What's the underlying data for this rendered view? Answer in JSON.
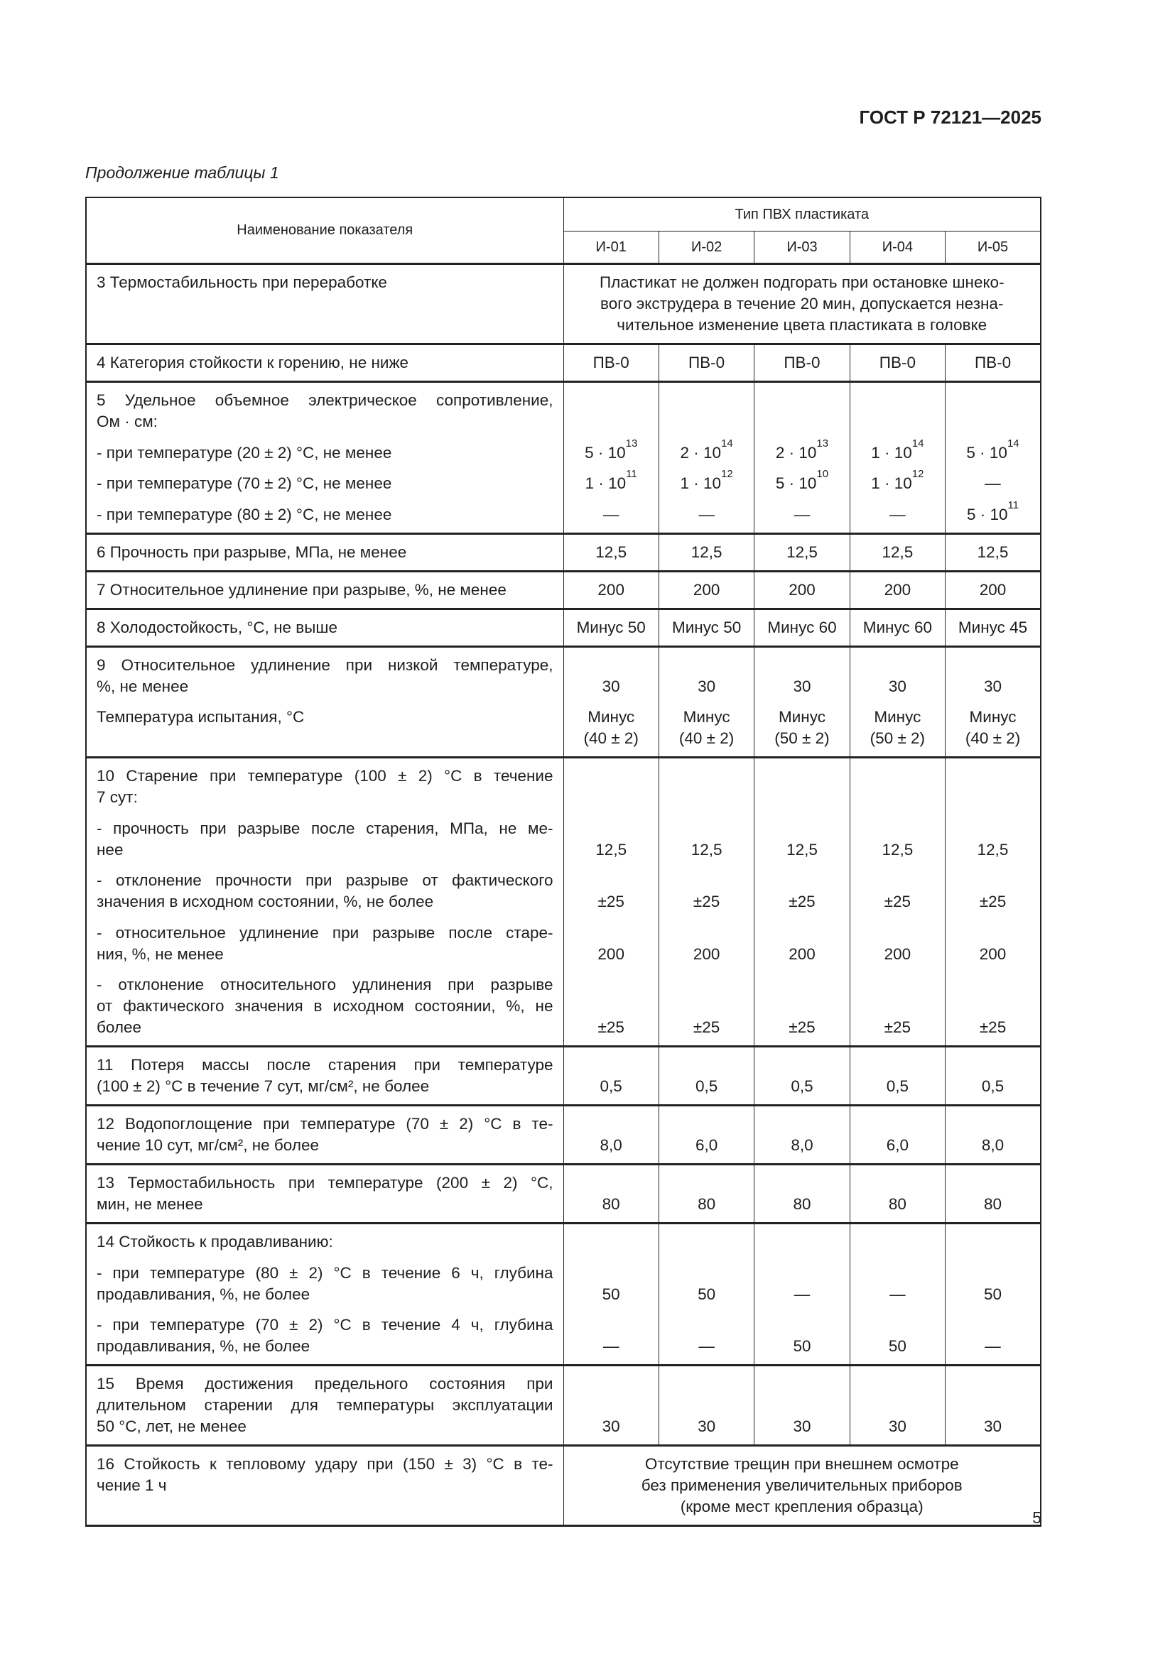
{
  "header": {
    "doc_code": "ГОСТ Р 72121—2025",
    "continuation": "Продолжение таблицы 1",
    "page_number": "5"
  },
  "table": {
    "col_header_name": "Наименование показателя",
    "col_group_header": "Тип ПВХ пластиката",
    "types": [
      "И-01",
      "И-02",
      "И-03",
      "И-04",
      "И-05"
    ],
    "rows": [
      {
        "items": [
          [
            "3  Термостабильность при переработке"
          ]
        ],
        "span": [
          "Пластикат не должен подгорать при остановке шнеко-",
          "вого экструдера в течение 20 мин, допускается незна-",
          "чительное изменение цвета пластиката в головке"
        ]
      },
      {
        "items": [
          [
            "4  Категория стойкости к горению, не ниже"
          ]
        ],
        "values": [
          [
            [
              "ПВ-0"
            ]
          ],
          [
            [
              "ПВ-0"
            ]
          ],
          [
            [
              "ПВ-0"
            ]
          ],
          [
            [
              "ПВ-0"
            ]
          ],
          [
            [
              "ПВ-0"
            ]
          ]
        ]
      },
      {
        "items": [
          [
            "5 Удельное объемное электрическое сопротивление,",
            "Ом · см:"
          ],
          [
            "- при температуре (20 ± 2) °С, не менее"
          ],
          [
            "- при температуре (70 ± 2) °С, не менее"
          ],
          [
            "- при температуре (80 ± 2) °С, не менее"
          ]
        ],
        "values": [
          [
            null,
            [
              {
                "m": "5 · 10",
                "e": "13"
              }
            ],
            [
              {
                "m": "1 · 10",
                "e": "11"
              }
            ],
            [
              "—"
            ]
          ],
          [
            null,
            [
              {
                "m": "2 · 10",
                "e": "14"
              }
            ],
            [
              {
                "m": "1 · 10",
                "e": "12"
              }
            ],
            [
              "—"
            ]
          ],
          [
            null,
            [
              {
                "m": "2 · 10",
                "e": "13"
              }
            ],
            [
              {
                "m": "5 · 10",
                "e": "10"
              }
            ],
            [
              "—"
            ]
          ],
          [
            null,
            [
              {
                "m": "1 · 10",
                "e": "14"
              }
            ],
            [
              {
                "m": "1 · 10",
                "e": "12"
              }
            ],
            [
              "—"
            ]
          ],
          [
            null,
            [
              {
                "m": "5 · 10",
                "e": "14"
              }
            ],
            [
              "—"
            ],
            [
              {
                "m": "5 · 10",
                "e": "11"
              }
            ]
          ]
        ]
      },
      {
        "items": [
          [
            "6  Прочность при разрыве, МПа, не менее"
          ]
        ],
        "values": [
          [
            [
              "12,5"
            ]
          ],
          [
            [
              "12,5"
            ]
          ],
          [
            [
              "12,5"
            ]
          ],
          [
            [
              "12,5"
            ]
          ],
          [
            [
              "12,5"
            ]
          ]
        ]
      },
      {
        "items": [
          [
            "7  Относительное удлинение при разрыве, %, не менее"
          ]
        ],
        "values": [
          [
            [
              "200"
            ]
          ],
          [
            [
              "200"
            ]
          ],
          [
            [
              "200"
            ]
          ],
          [
            [
              "200"
            ]
          ],
          [
            [
              "200"
            ]
          ]
        ]
      },
      {
        "items": [
          [
            "8  Холодостойкость, °С, не выше"
          ]
        ],
        "values": [
          [
            [
              "Минус 50"
            ]
          ],
          [
            [
              "Минус 50"
            ]
          ],
          [
            [
              "Минус 60"
            ]
          ],
          [
            [
              "Минус 60"
            ]
          ],
          [
            [
              "Минус 45"
            ]
          ]
        ]
      },
      {
        "items": [
          [
            "9  Относительное удлинение при низкой температуре,",
            "%, не менее"
          ],
          [
            "Температура испытания, °С"
          ]
        ],
        "values": [
          [
            [
              "30"
            ],
            [
              "Минус",
              "(40 ± 2)"
            ]
          ],
          [
            [
              "30"
            ],
            [
              "Минус",
              "(40 ± 2)"
            ]
          ],
          [
            [
              "30"
            ],
            [
              "Минус",
              "(50 ± 2)"
            ]
          ],
          [
            [
              "30"
            ],
            [
              "Минус",
              "(50 ± 2)"
            ]
          ],
          [
            [
              "30"
            ],
            [
              "Минус",
              "(40 ± 2)"
            ]
          ]
        ]
      },
      {
        "items": [
          [
            "10  Старение при температуре (100 ± 2) °С в течение",
            "7 сут:"
          ],
          [
            "- прочность при разрыве после старения, МПа, не ме-",
            "нее"
          ],
          [
            "- отклонение прочности при разрыве от фактического",
            "значения в исходном состоянии, %, не более"
          ],
          [
            "- относительное удлинение при разрыве после старе-",
            "ния, %, не менее"
          ],
          [
            "- отклонение относительного удлинения при разрыве",
            "от фактического значения в исходном состоянии, %, не",
            "более"
          ]
        ],
        "values": [
          [
            null,
            [
              "12,5"
            ],
            [
              "±25"
            ],
            [
              "200"
            ],
            [
              "±25"
            ]
          ],
          [
            null,
            [
              "12,5"
            ],
            [
              "±25"
            ],
            [
              "200"
            ],
            [
              "±25"
            ]
          ],
          [
            null,
            [
              "12,5"
            ],
            [
              "±25"
            ],
            [
              "200"
            ],
            [
              "±25"
            ]
          ],
          [
            null,
            [
              "12,5"
            ],
            [
              "±25"
            ],
            [
              "200"
            ],
            [
              "±25"
            ]
          ],
          [
            null,
            [
              "12,5"
            ],
            [
              "±25"
            ],
            [
              "200"
            ],
            [
              "±25"
            ]
          ]
        ]
      },
      {
        "items": [
          [
            "11  Потеря массы после старения при температуре",
            "(100 ± 2) °С в течение 7 сут, мг/см², не более"
          ]
        ],
        "values": [
          [
            [
              "0,5"
            ]
          ],
          [
            [
              "0,5"
            ]
          ],
          [
            [
              "0,5"
            ]
          ],
          [
            [
              "0,5"
            ]
          ],
          [
            [
              "0,5"
            ]
          ]
        ]
      },
      {
        "items": [
          [
            "12  Водопоглощение при температуре (70 ± 2) °С в те-",
            "чение 10 сут, мг/см², не более"
          ]
        ],
        "values": [
          [
            [
              "8,0"
            ]
          ],
          [
            [
              "6,0"
            ]
          ],
          [
            [
              "8,0"
            ]
          ],
          [
            [
              "6,0"
            ]
          ],
          [
            [
              "8,0"
            ]
          ]
        ]
      },
      {
        "items": [
          [
            "13  Термостабильность при температуре (200 ± 2) °С,",
            "мин, не менее"
          ]
        ],
        "values": [
          [
            [
              "80"
            ]
          ],
          [
            [
              "80"
            ]
          ],
          [
            [
              "80"
            ]
          ],
          [
            [
              "80"
            ]
          ],
          [
            [
              "80"
            ]
          ]
        ]
      },
      {
        "items": [
          [
            "14  Стойкость к продавливанию:"
          ],
          [
            "- при температуре (80 ± 2) °С в течение 6 ч, глубина",
            "продавливания, %, не более"
          ],
          [
            "- при температуре (70 ± 2) °С в течение 4 ч, глубина",
            "продавливания, %, не более"
          ]
        ],
        "values": [
          [
            null,
            [
              "50"
            ],
            [
              "—"
            ]
          ],
          [
            null,
            [
              "50"
            ],
            [
              "—"
            ]
          ],
          [
            null,
            [
              "—"
            ],
            [
              "50"
            ]
          ],
          [
            null,
            [
              "—"
            ],
            [
              "50"
            ]
          ],
          [
            null,
            [
              "50"
            ],
            [
              "—"
            ]
          ]
        ]
      },
      {
        "items": [
          [
            "15  Время достижения предельного состояния при",
            "длительном старении для температуры эксплуатации",
            "50 °С, лет, не менее"
          ]
        ],
        "values": [
          [
            [
              "30"
            ]
          ],
          [
            [
              "30"
            ]
          ],
          [
            [
              "30"
            ]
          ],
          [
            [
              "30"
            ]
          ],
          [
            [
              "30"
            ]
          ]
        ]
      },
      {
        "items": [
          [
            "16  Стойкость к тепловому удару при (150 ± 3) °С в те-",
            "чение 1 ч"
          ]
        ],
        "span": [
          "Отсутствие трещин при внешнем осмотре",
          "без применения увеличительных приборов",
          "(кроме мест крепления образца)"
        ]
      }
    ]
  }
}
